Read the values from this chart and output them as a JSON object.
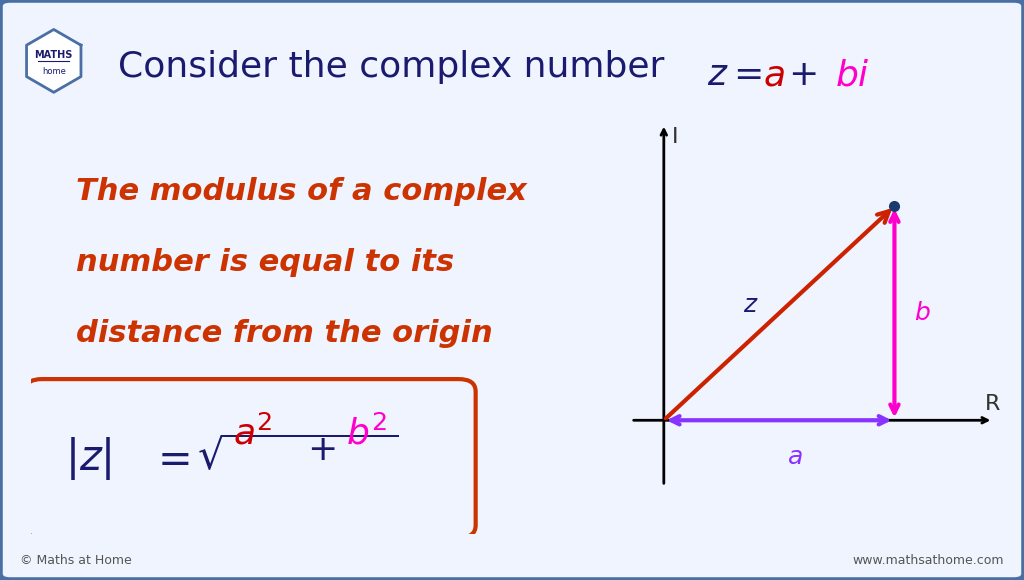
{
  "bg_color": "#f0f4ff",
  "border_color": "#4a6fa5",
  "title_prefix": "Consider the complex number ",
  "title_z": "z",
  "title_eq": " = ",
  "title_a": "a",
  "title_plus": " + ",
  "title_bi": "bi",
  "title_color": "#1a1a6e",
  "title_italic_color": "#cc0000",
  "title_bi_color": "#ff00cc",
  "modulus_text_line1": "The modulus of a complex",
  "modulus_text_line2": "number is equal to its",
  "modulus_text_line3": "distance from the origin",
  "modulus_text_color": "#cc3300",
  "formula_box_color": "#cc3300",
  "plot_bg": "#ffffff",
  "arrow_z_color": "#cc2200",
  "arrow_b_color": "#ff00cc",
  "arrow_a_color": "#8833ff",
  "label_z_color": "#1a1a6e",
  "label_b_color": "#ff00cc",
  "label_a_color": "#8833ff",
  "label_I_color": "#000000",
  "label_R_color": "#000000",
  "point_color": "#1a3a6e",
  "footer_left": "© Maths at Home",
  "footer_right": "www.mathsathome.com"
}
